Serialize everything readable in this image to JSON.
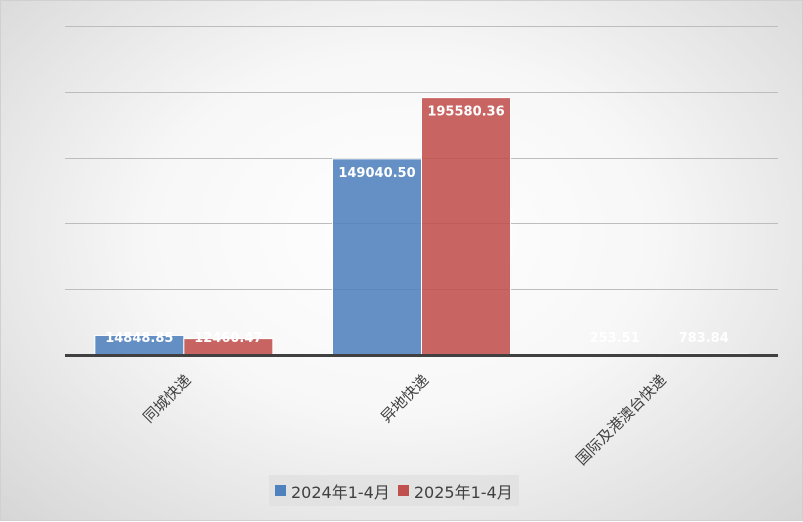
{
  "chart_data": {
    "type": "bar",
    "categories": [
      "同城快递",
      "异地快递",
      "国际及港澳台快递"
    ],
    "series": [
      {
        "name": "2024年1-4月",
        "values": [
          14848.85,
          149040.5,
          253.51
        ],
        "labels": [
          "14848.85",
          "149040.50",
          "253.51"
        ],
        "color": "#4f81bd"
      },
      {
        "name": "2025年1-4月",
        "values": [
          12460.47,
          195580.36,
          783.84
        ],
        "labels": [
          "12460.47",
          "195580.36",
          "783.84"
        ],
        "color": "#c0504d"
      }
    ],
    "title": "",
    "xlabel": "",
    "ylabel": "",
    "ylim": [
      0,
      250000
    ],
    "y_gridline_step": 50000,
    "y_tick_labels_shown": false,
    "grid": true,
    "legend": "bottom"
  }
}
